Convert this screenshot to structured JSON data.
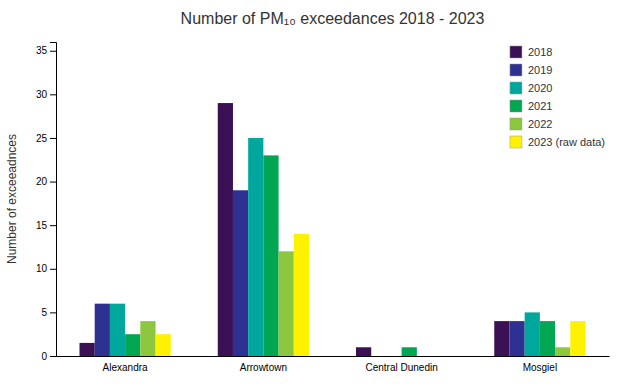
{
  "chart_data": {
    "type": "bar",
    "title": "Number of PM₁₀ exceedances 2018 - 2023",
    "y_label": "Number of exceeadnces",
    "categories": [
      "Alexandra",
      "Arrowtown",
      "Central Dunedin",
      "Mosgiel"
    ],
    "series": [
      {
        "name": "2018",
        "color": "#3b1054",
        "values": [
          1.5,
          29,
          1,
          4
        ]
      },
      {
        "name": "2019",
        "color": "#2e3192",
        "values": [
          6,
          19,
          0,
          4
        ]
      },
      {
        "name": "2020",
        "color": "#00a79d",
        "values": [
          6,
          25,
          0,
          5
        ]
      },
      {
        "name": "2021",
        "color": "#00a651",
        "values": [
          2.5,
          23,
          1,
          4
        ]
      },
      {
        "name": "2022",
        "color": "#8dc63f",
        "values": [
          4,
          12,
          0,
          1
        ]
      },
      {
        "name": "2023 (raw data)",
        "color": "#fff200",
        "values": [
          2.5,
          14,
          0,
          4
        ]
      }
    ],
    "ylim": [
      0,
      36
    ],
    "yticks": [
      0,
      5,
      10,
      15,
      20,
      25,
      30,
      35
    ],
    "grid": false,
    "legend": "upper right"
  }
}
